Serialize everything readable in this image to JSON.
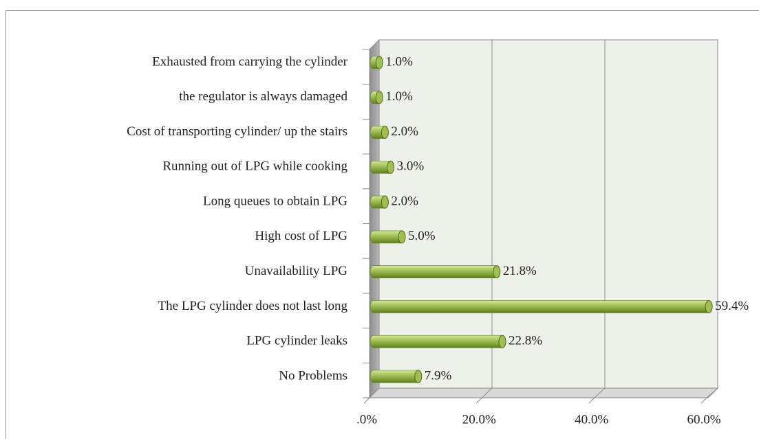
{
  "chart_data": {
    "type": "bar",
    "orientation": "horizontal",
    "categories": [
      "Exhausted from carrying the cylinder",
      "the regulator is always damaged",
      "Cost of transporting cylinder/ up the stairs",
      "Running out of LPG while cooking",
      "Long queues to obtain LPG",
      "High cost of LPG",
      "Unavailability LPG",
      "The LPG cylinder does not last long",
      "LPG cylinder leaks",
      "No Problems"
    ],
    "values": [
      1.0,
      1.0,
      2.0,
      3.0,
      2.0,
      5.0,
      21.8,
      59.4,
      22.8,
      7.9
    ],
    "value_labels": [
      "1.0%",
      "1.0%",
      "2.0%",
      "3.0%",
      "2.0%",
      "5.0%",
      "21.8%",
      "59.4%",
      "22.8%",
      "7.9%"
    ],
    "color": "#9bbb59",
    "xlim": [
      0,
      60
    ],
    "xticks": [
      {
        "value": 0,
        "label": ".0%"
      },
      {
        "value": 20,
        "label": "20.0%"
      },
      {
        "value": 40,
        "label": "40.0%"
      },
      {
        "value": 60,
        "label": "60.0%"
      }
    ],
    "grid": true
  }
}
